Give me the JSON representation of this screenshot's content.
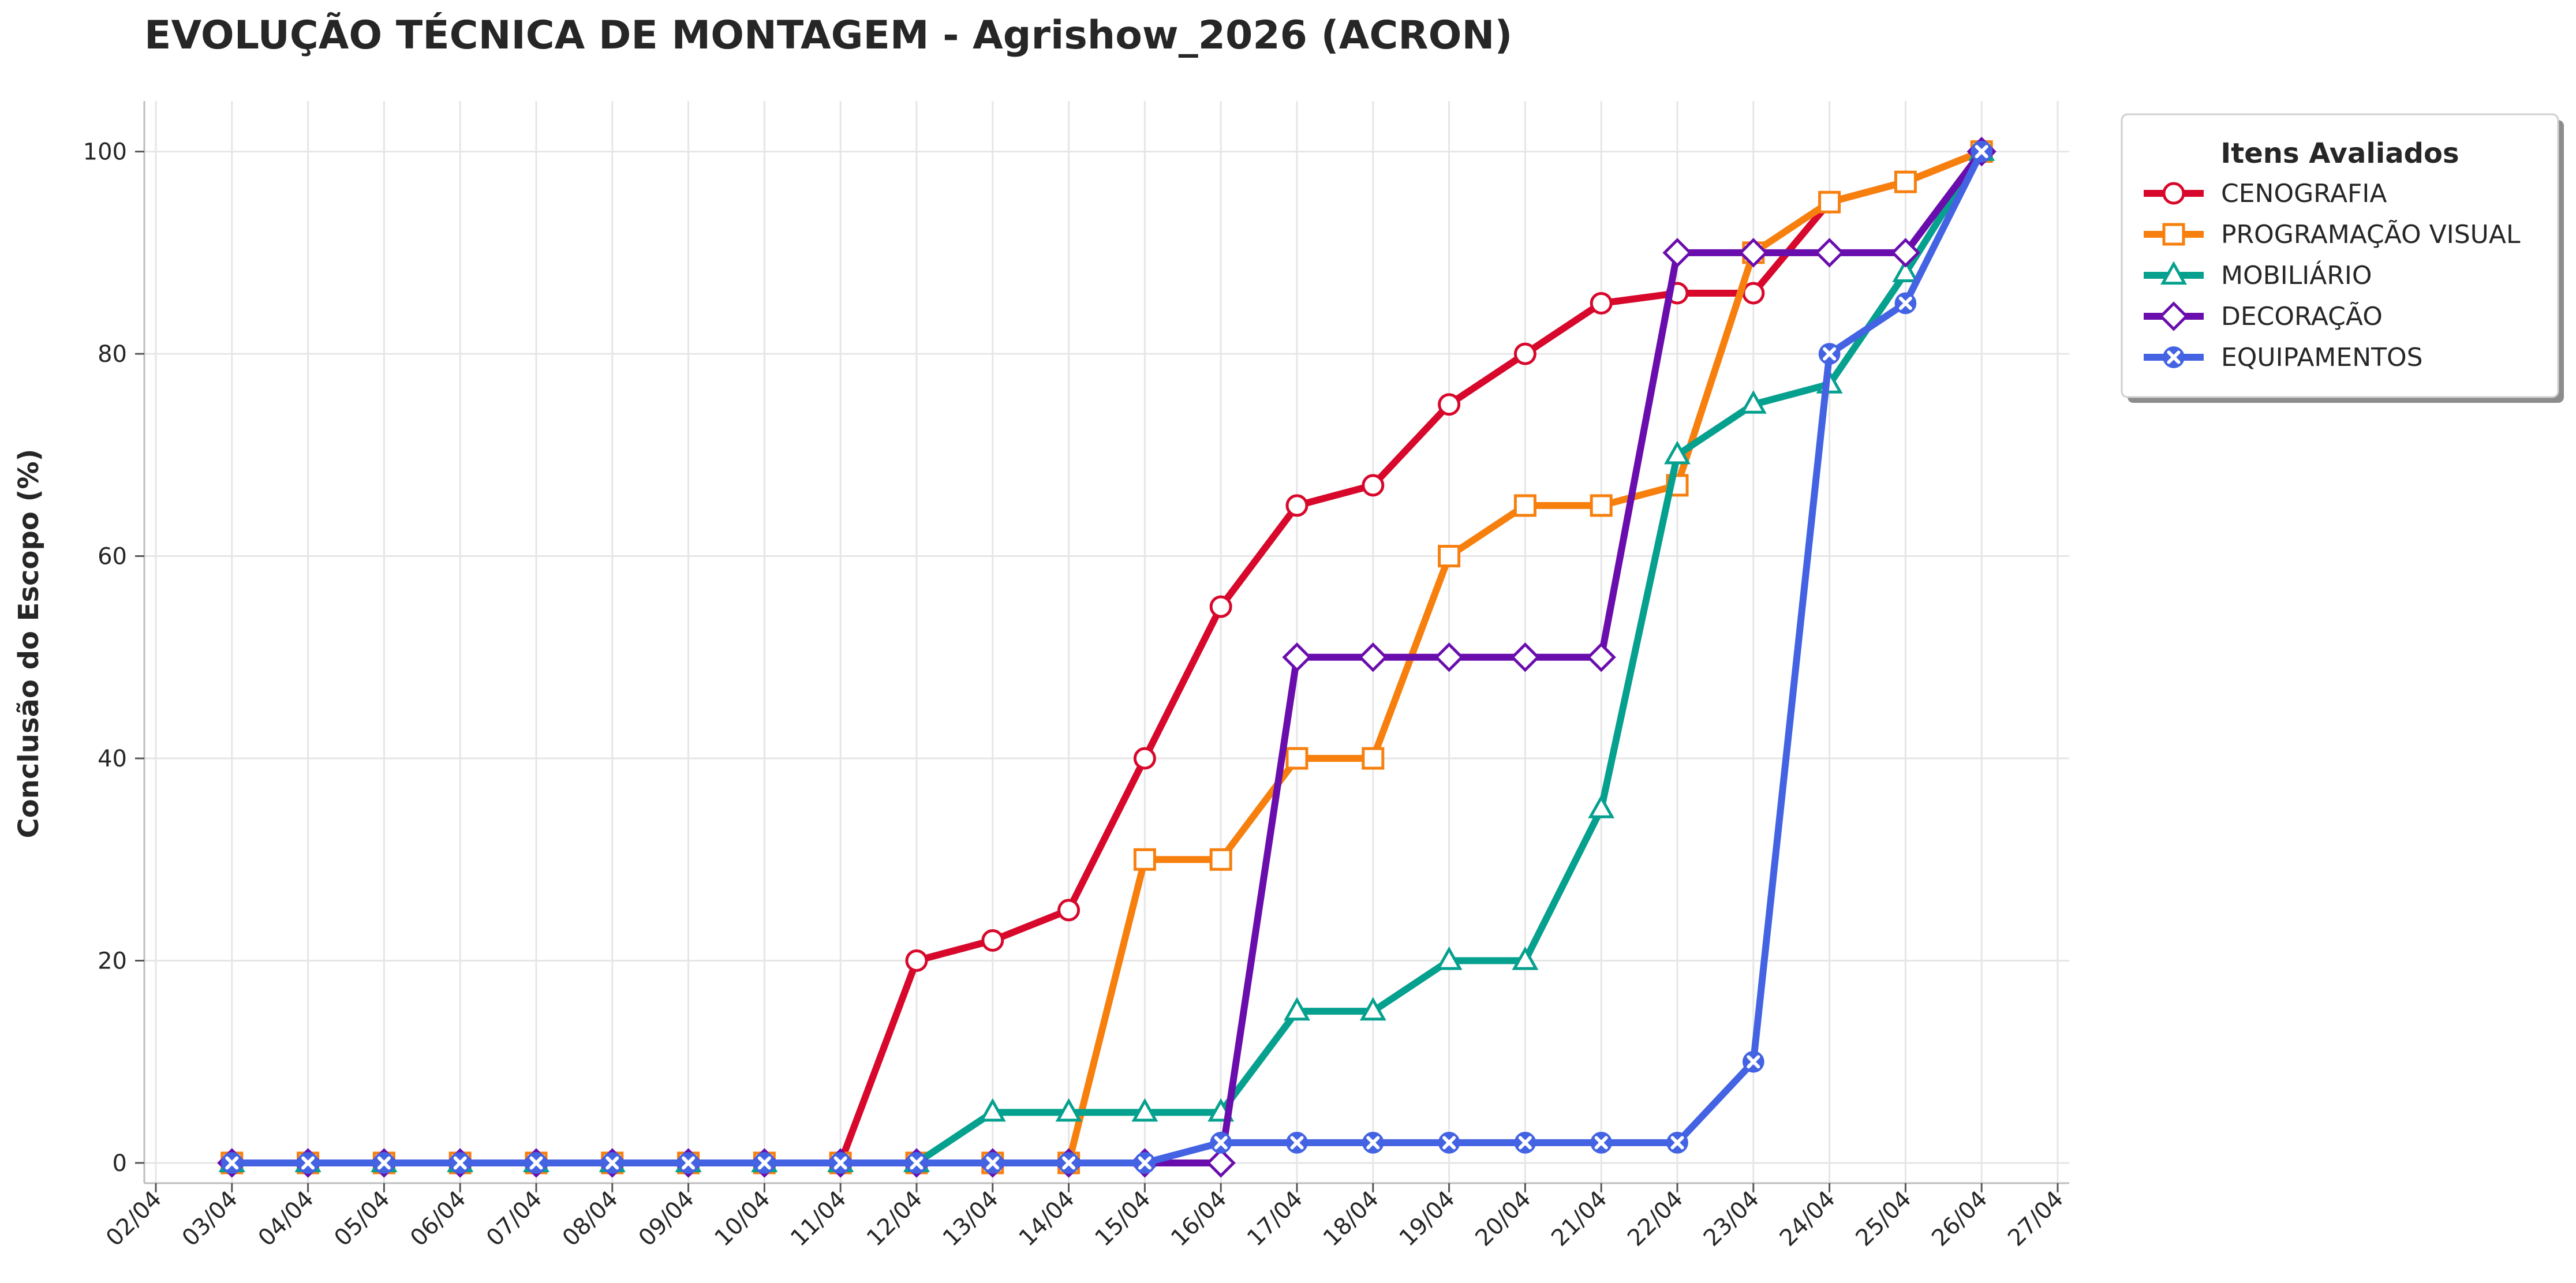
{
  "chart_data": {
    "type": "line",
    "title": "EVOLUÇÃO TÉCNICA DE MONTAGEM - Agrishow_2026 (ACRON)",
    "xlabel": "",
    "ylabel": "Conclusão do Escopo (%)",
    "ylim": [
      -2,
      105
    ],
    "yticks": [
      0,
      20,
      40,
      60,
      80,
      100
    ],
    "grid": true,
    "legend_title": "Itens Avaliados",
    "legend_position": "outside-top-right",
    "x_ticks": [
      "02/04",
      "03/04",
      "04/04",
      "05/04",
      "06/04",
      "07/04",
      "08/04",
      "09/04",
      "10/04",
      "11/04",
      "12/04",
      "13/04",
      "14/04",
      "15/04",
      "16/04",
      "17/04",
      "18/04",
      "19/04",
      "20/04",
      "21/04",
      "22/04",
      "23/04",
      "24/04",
      "25/04",
      "26/04",
      "27/04"
    ],
    "x": [
      "03/04",
      "04/04",
      "05/04",
      "06/04",
      "07/04",
      "08/04",
      "09/04",
      "10/04",
      "11/04",
      "12/04",
      "13/04",
      "14/04",
      "15/04",
      "16/04",
      "17/04",
      "18/04",
      "19/04",
      "20/04",
      "21/04",
      "22/04",
      "23/04",
      "24/04",
      "25/04",
      "26/04"
    ],
    "series": [
      {
        "name": "CENOGRAFIA",
        "color": "#d7082b",
        "marker": "circle",
        "values": [
          0,
          0,
          0,
          0,
          0,
          0,
          0,
          0,
          0,
          20,
          22,
          25,
          40,
          55,
          65,
          67,
          75,
          80,
          85,
          86,
          86,
          95,
          97,
          100
        ]
      },
      {
        "name": "PROGRAMAÇÃO VISUAL",
        "color": "#f77f0e",
        "marker": "square",
        "values": [
          0,
          0,
          0,
          0,
          0,
          0,
          0,
          0,
          0,
          0,
          0,
          0,
          30,
          30,
          40,
          40,
          60,
          65,
          65,
          67,
          90,
          95,
          97,
          100
        ]
      },
      {
        "name": "MOBILIÁRIO",
        "color": "#06a08e",
        "marker": "triangle",
        "values": [
          0,
          0,
          0,
          0,
          0,
          0,
          0,
          0,
          0,
          0,
          5,
          5,
          5,
          5,
          15,
          15,
          20,
          20,
          35,
          70,
          75,
          77,
          88,
          100
        ]
      },
      {
        "name": "DECORAÇÃO",
        "color": "#6a0dad",
        "marker": "diamond",
        "values": [
          0,
          0,
          0,
          0,
          0,
          0,
          0,
          0,
          0,
          0,
          0,
          0,
          0,
          0,
          50,
          50,
          50,
          50,
          50,
          90,
          90,
          90,
          90,
          100
        ]
      },
      {
        "name": "EQUIPAMENTOS",
        "color": "#4363e3",
        "marker": "x",
        "values": [
          0,
          0,
          0,
          0,
          0,
          0,
          0,
          0,
          0,
          0,
          0,
          0,
          0,
          2,
          2,
          2,
          2,
          2,
          2,
          2,
          10,
          80,
          85,
          100
        ]
      }
    ]
  }
}
